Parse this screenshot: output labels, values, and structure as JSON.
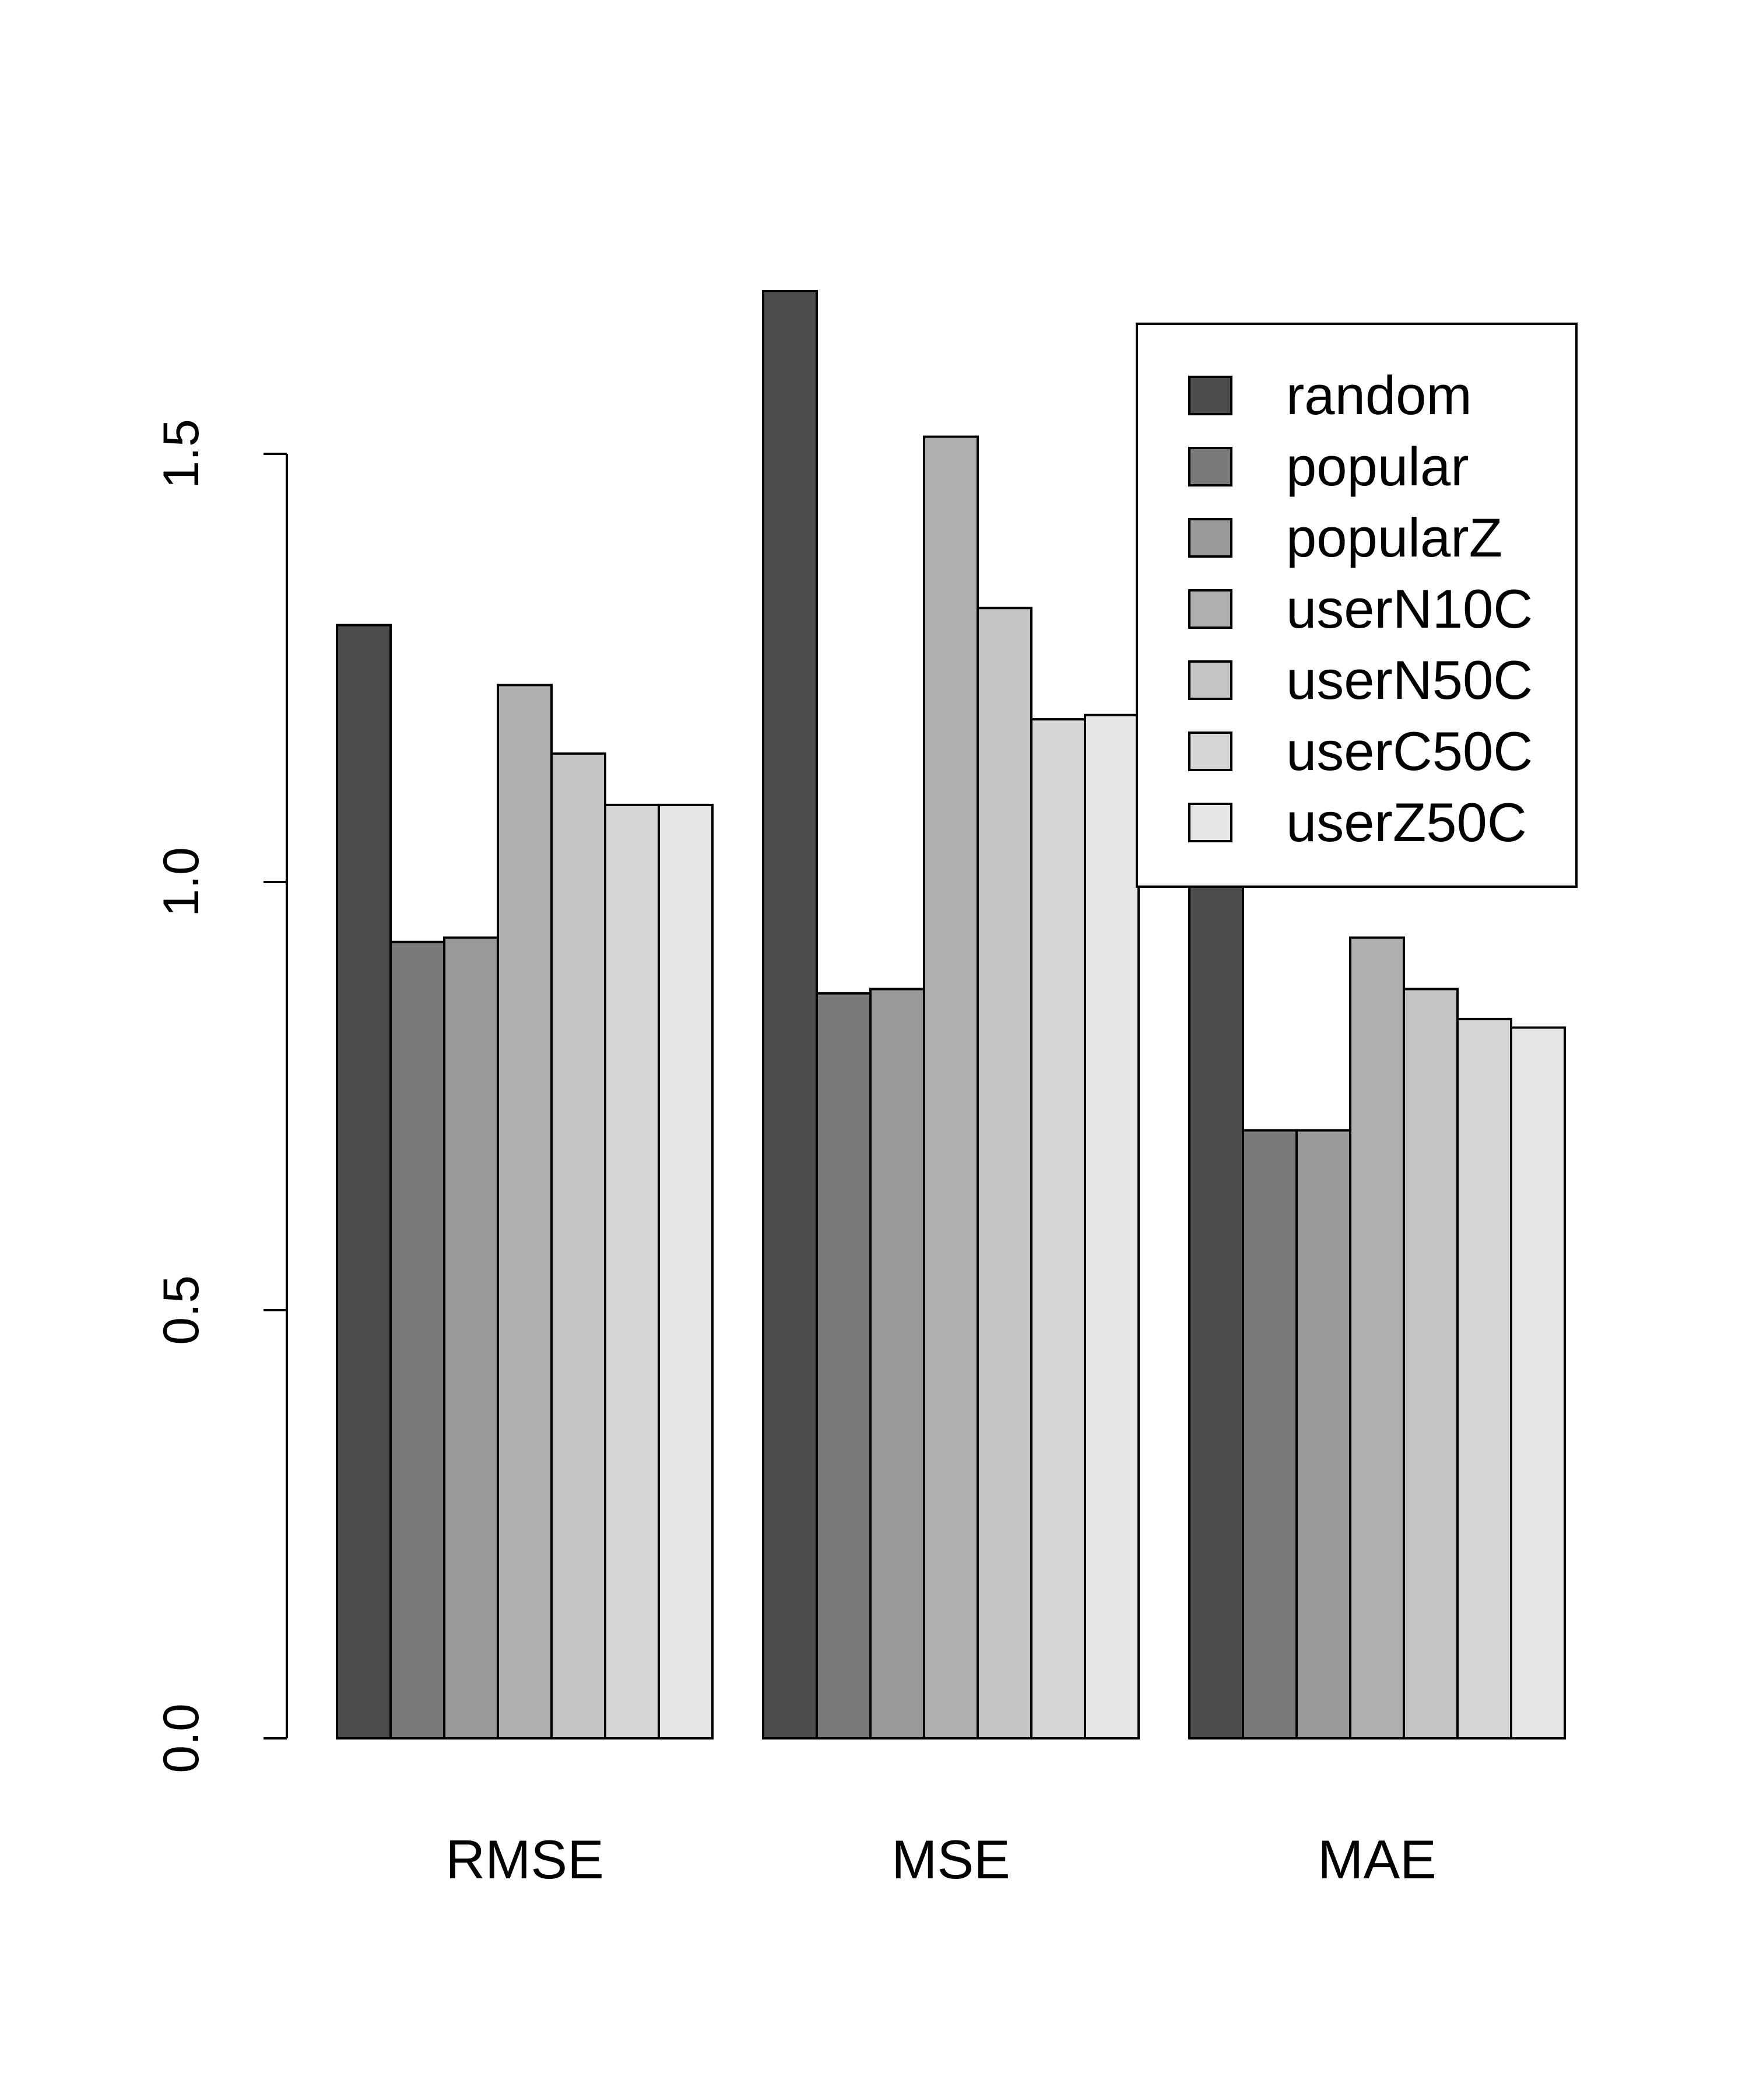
{
  "chart_data": {
    "type": "bar",
    "title": "",
    "xlabel": "",
    "ylabel": "",
    "categories": [
      "RMSE",
      "MSE",
      "MAE"
    ],
    "ylim": [
      0,
      1.5
    ],
    "yticks": [
      "0.0",
      "0.5",
      "1.0",
      "1.5"
    ],
    "grid": false,
    "legend_position": "top-right",
    "series": [
      {
        "name": "random",
        "color": "#4d4d4d",
        "values": [
          1.3,
          1.69,
          1.02
        ]
      },
      {
        "name": "popular",
        "color": "#7a7a7a",
        "values": [
          0.93,
          0.87,
          0.71
        ]
      },
      {
        "name": "popularZ",
        "color": "#999999",
        "values": [
          0.935,
          0.875,
          0.71
        ]
      },
      {
        "name": "userN10C",
        "color": "#afafaf",
        "values": [
          1.23,
          1.52,
          0.935
        ]
      },
      {
        "name": "userN50C",
        "color": "#c4c4c4",
        "values": [
          1.15,
          1.32,
          0.875
        ]
      },
      {
        "name": "userC50C",
        "color": "#d6d6d6",
        "values": [
          1.09,
          1.19,
          0.84
        ]
      },
      {
        "name": "userZ50C",
        "color": "#e6e6e6",
        "values": [
          1.09,
          1.195,
          0.83
        ]
      }
    ]
  }
}
